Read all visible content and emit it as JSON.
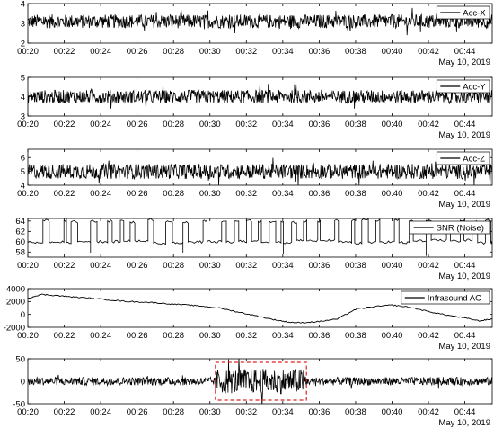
{
  "chart_data": [
    {
      "type": "line",
      "title": "",
      "xlabel": "",
      "ylabel": "",
      "date_label": "May 10, 2019",
      "x_ticks": [
        "00:20",
        "00:22",
        "00:24",
        "00:26",
        "00:28",
        "00:30",
        "00:32",
        "00:34",
        "00:36",
        "00:38",
        "00:40",
        "00:42",
        "00:44"
      ],
      "xlim_minutes": [
        20,
        45.5
      ],
      "ylim": [
        2,
        4
      ],
      "y_ticks": [
        "2",
        "3",
        "4"
      ],
      "legend": "top-right",
      "series": [
        {
          "name": "Acc-X",
          "mean": 3.1,
          "amplitude": 0.35,
          "style": "noise",
          "color": "#000000"
        }
      ]
    },
    {
      "type": "line",
      "title": "",
      "xlabel": "",
      "ylabel": "",
      "date_label": "May 10, 2019",
      "x_ticks": [
        "00:20",
        "00:22",
        "00:24",
        "00:26",
        "00:28",
        "00:30",
        "00:32",
        "00:34",
        "00:36",
        "00:38",
        "00:40",
        "00:42",
        "00:44"
      ],
      "xlim_minutes": [
        20,
        45.5
      ],
      "ylim": [
        3,
        5
      ],
      "y_ticks": [
        "3",
        "4",
        "5"
      ],
      "legend": "top-right",
      "series": [
        {
          "name": "Acc-Y",
          "mean": 4.0,
          "amplitude": 0.35,
          "style": "noise",
          "color": "#000000"
        }
      ]
    },
    {
      "type": "line",
      "title": "",
      "xlabel": "",
      "ylabel": "",
      "date_label": "May 10, 2019",
      "x_ticks": [
        "00:20",
        "00:22",
        "00:24",
        "00:26",
        "00:28",
        "00:30",
        "00:32",
        "00:34",
        "00:36",
        "00:38",
        "00:40",
        "00:42",
        "00:44"
      ],
      "xlim_minutes": [
        20,
        45.5
      ],
      "ylim": [
        4,
        6.6
      ],
      "y_ticks": [
        "4",
        "5",
        "6"
      ],
      "legend": "top-right",
      "series": [
        {
          "name": "Acc-Z",
          "mean": 5.0,
          "amplitude": 0.55,
          "style": "noise",
          "color": "#000000"
        }
      ]
    },
    {
      "type": "line",
      "title": "",
      "xlabel": "",
      "ylabel": "",
      "date_label": "May 10, 2019",
      "x_ticks": [
        "00:20",
        "00:22",
        "00:24",
        "00:26",
        "00:28",
        "00:30",
        "00:32",
        "00:34",
        "00:36",
        "00:38",
        "00:40",
        "00:42",
        "00:44"
      ],
      "xlim_minutes": [
        20,
        45.5
      ],
      "ylim": [
        57,
        64.5
      ],
      "y_ticks": [
        "58",
        "60",
        "62",
        "64"
      ],
      "legend": "top-right",
      "series": [
        {
          "name": "SNR (Noise)",
          "low": 60,
          "high": 64,
          "style": "square",
          "color": "#000000"
        }
      ]
    },
    {
      "type": "line",
      "title": "",
      "xlabel": "",
      "ylabel": "",
      "date_label": "May 10, 2019",
      "x_ticks": [
        "00:20",
        "00:22",
        "00:24",
        "00:26",
        "00:28",
        "00:30",
        "00:32",
        "00:34",
        "00:36",
        "00:38",
        "00:40",
        "00:42",
        "00:44"
      ],
      "xlim_minutes": [
        20,
        45.5
      ],
      "ylim": [
        -2000,
        4000
      ],
      "y_ticks": [
        "-2000",
        "0",
        "2000",
        "4000"
      ],
      "legend": "top-right",
      "series": [
        {
          "name": "Infrasound AC",
          "style": "smooth",
          "color": "#000000",
          "x": [
            20,
            20.7,
            21.5,
            22.5,
            23.5,
            24.5,
            25.5,
            26.5,
            27.5,
            28.5,
            29.5,
            30.5,
            31.5,
            32.5,
            33.5,
            34.3,
            35,
            36,
            37,
            38,
            39,
            40,
            41,
            42,
            43,
            44,
            44.8,
            45.5
          ],
          "y": [
            2500,
            3100,
            2950,
            2700,
            2500,
            2250,
            2000,
            1900,
            1700,
            1500,
            1300,
            1000,
            400,
            -200,
            -800,
            -1200,
            -1300,
            -1100,
            -700,
            800,
            1200,
            1450,
            1100,
            450,
            -100,
            -550,
            -1000,
            -700
          ]
        }
      ]
    },
    {
      "type": "line",
      "title": "",
      "xlabel": "",
      "ylabel": "",
      "date_label": "May 10, 2019",
      "x_ticks": [
        "00:20",
        "00:22",
        "00:24",
        "00:26",
        "00:28",
        "00:30",
        "00:32",
        "00:34",
        "00:36",
        "00:38",
        "00:40",
        "00:42",
        "00:44"
      ],
      "xlim_minutes": [
        20,
        45.5
      ],
      "ylim": [
        -50,
        50
      ],
      "y_ticks": [
        "-50",
        "0",
        "50"
      ],
      "highlight_box": {
        "x_start_minutes": 30.3,
        "x_end_minutes": 35.3,
        "y_min": -42,
        "y_max": 42,
        "color": "#e02020"
      },
      "series": [
        {
          "name": "",
          "mean": 0,
          "amplitude": 9,
          "burst": {
            "x_start_minutes": 30.3,
            "x_end_minutes": 35.3,
            "amplitude": 28
          },
          "style": "noise",
          "color": "#000000"
        }
      ]
    }
  ]
}
